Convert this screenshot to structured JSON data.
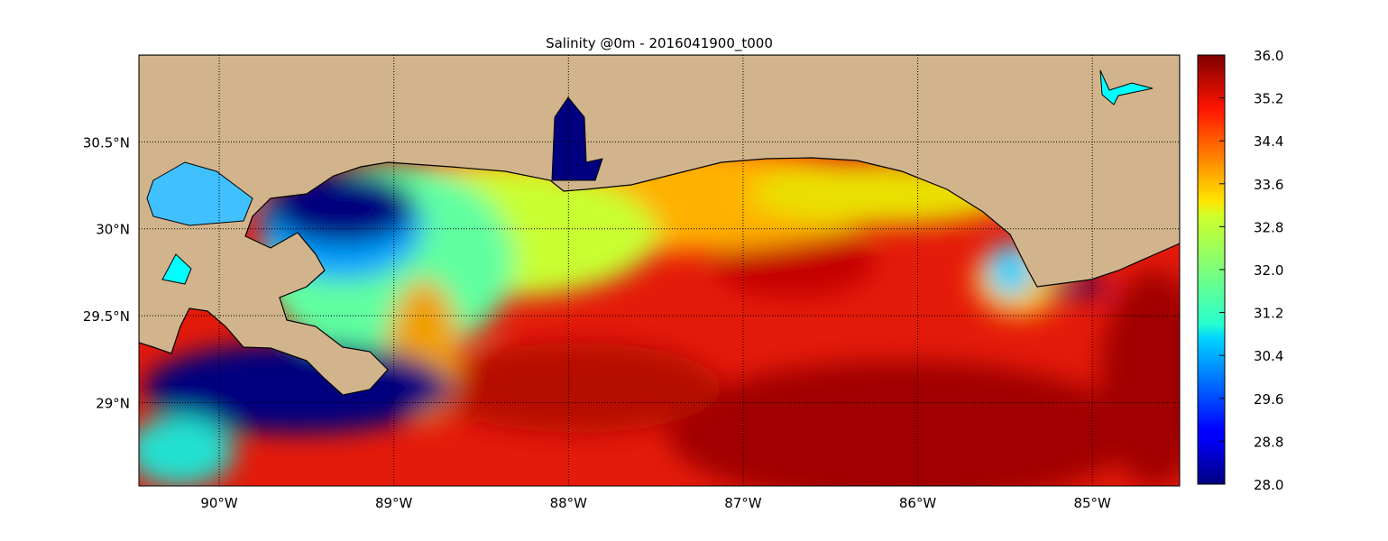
{
  "title": "Salinity @0m - 2016041900_t000",
  "map": {
    "xlim": [
      -90.46,
      -84.5
    ],
    "ylim": [
      28.52,
      31.0
    ],
    "xticks": [
      {
        "value": -90,
        "label": "90°W"
      },
      {
        "value": -89,
        "label": "89°W"
      },
      {
        "value": -88,
        "label": "88°W"
      },
      {
        "value": -87,
        "label": "87°W"
      },
      {
        "value": -86,
        "label": "86°W"
      },
      {
        "value": -85,
        "label": "85°W"
      }
    ],
    "yticks": [
      {
        "value": 29,
        "label": "29°N"
      },
      {
        "value": 29.5,
        "label": "29.5°N"
      },
      {
        "value": 30,
        "label": "30°N"
      },
      {
        "value": 30.5,
        "label": "30.5°N"
      }
    ],
    "grid": true
  },
  "colorbar": {
    "lim": [
      28,
      36
    ],
    "colormap": "jet",
    "ticks": [
      {
        "value": 28,
        "label": "28.0"
      },
      {
        "value": 28.8,
        "label": "28.8"
      },
      {
        "value": 29.6,
        "label": "29.6"
      },
      {
        "value": 30.4,
        "label": "30.4"
      },
      {
        "value": 31.2,
        "label": "31.2"
      },
      {
        "value": 32,
        "label": "32.0"
      },
      {
        "value": 32.8,
        "label": "32.8"
      },
      {
        "value": 33.6,
        "label": "33.6"
      },
      {
        "value": 34.4,
        "label": "34.4"
      },
      {
        "value": 35.2,
        "label": "35.2"
      },
      {
        "value": 36,
        "label": "36.0"
      }
    ]
  }
}
